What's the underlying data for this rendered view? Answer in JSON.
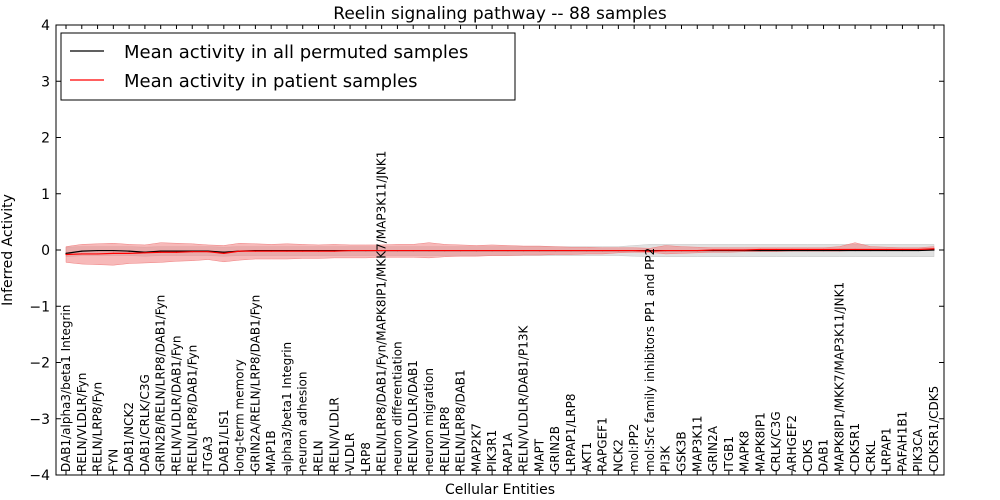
{
  "chart_data": {
    "type": "line",
    "title": "Reelin signaling pathway -- 88 samples",
    "xlabel": "Cellular Entities",
    "ylabel": "Inferred Activity",
    "ylim": [
      -4,
      4
    ],
    "yticks": [
      4,
      3,
      2,
      1,
      0,
      -1,
      -2,
      -3,
      -4
    ],
    "ytick_labels": [
      "4",
      "3",
      "2",
      "1",
      "0",
      "−1",
      "−2",
      "−3",
      "−4"
    ],
    "grid": false,
    "legend_placement": "top-left",
    "colors": {
      "permuted": "#000000",
      "patient": "#ff0000",
      "patient_band": "#f08080",
      "permuted_band": "#c8c8c8"
    },
    "categories": [
      "DAB1/alpha3/beta1 Integrin",
      "RELN/VLDLR/Fyn",
      "RELN/LRP8/Fyn",
      "FYN",
      "DAB1/NCK2",
      "DAB1/CRLK/C3G",
      "GRIN2B/RELN/LRP8/DAB1/Fyn",
      "RELN/VLDLR/DAB1/Fyn",
      "RELN/LRP8/DAB1/Fyn",
      "ITGA3",
      "DAB1/LIS1",
      "long-term memory",
      "GRIN2A/RELN/LRP8/DAB1/Fyn",
      "MAP1B",
      "alpha3/beta1 Integrin",
      "neuron adhesion",
      "RELN",
      "RELN/VLDLR",
      "VLDLR",
      "LRP8",
      "RELN/LRP8/DAB1/Fyn/MAPK8IP1/MKK7/MAP3K11/JNK1",
      "neuron differentiation",
      "RELN/VLDLR/DAB1",
      "neuron migration",
      "RELN/LRP8",
      "RELN/LRP8/DAB1",
      "MAP2K7",
      "PIK3R1",
      "RAP1A",
      "RELN/VLDLR/DAB1/P13K",
      "MAPT",
      "GRIN2B",
      "LRPAP1/LRP8",
      "AKT1",
      "RAPGEF1",
      "NCK2",
      "mol:PP2",
      "mol:Src family inhibitors PP1 and PP2",
      "PI3K",
      "GSK3B",
      "MAP3K11",
      "GRIN2A",
      "ITGB1",
      "MAPK8",
      "MAPK8IP1",
      "CRLK/C3G",
      "ARHGEF2",
      "CDK5",
      "DAB1",
      "MAPK8IP1/MKK7/MAP3K11/JNK1",
      "CDK5R1",
      "CRKL",
      "LRPAP1",
      "PAFAH1B1",
      "PIK3CA",
      "CDK5R1/CDK5"
    ],
    "series": [
      {
        "name": "Mean activity in all permuted samples",
        "values": [
          -0.06,
          -0.02,
          -0.01,
          -0.01,
          -0.02,
          -0.04,
          -0.02,
          -0.02,
          -0.02,
          -0.02,
          -0.04,
          -0.02,
          -0.01,
          -0.01,
          -0.01,
          -0.01,
          -0.01,
          -0.01,
          -0.01,
          -0.01,
          -0.01,
          -0.01,
          -0.01,
          -0.01,
          -0.01,
          -0.01,
          -0.01,
          -0.01,
          -0.01,
          -0.01,
          -0.01,
          -0.01,
          -0.01,
          -0.01,
          -0.01,
          -0.01,
          -0.01,
          -0.01,
          -0.01,
          -0.01,
          -0.01,
          -0.01,
          -0.01,
          -0.01,
          -0.01,
          -0.01,
          -0.01,
          -0.01,
          -0.01,
          -0.01,
          -0.01,
          -0.01,
          -0.01,
          -0.01,
          -0.01,
          0.0
        ],
        "lower": [
          -0.12,
          -0.1,
          -0.1,
          -0.1,
          -0.1,
          -0.11,
          -0.1,
          -0.1,
          -0.1,
          -0.1,
          -0.11,
          -0.1,
          -0.1,
          -0.1,
          -0.1,
          -0.1,
          -0.1,
          -0.1,
          -0.1,
          -0.1,
          -0.1,
          -0.1,
          -0.1,
          -0.1,
          -0.1,
          -0.1,
          -0.1,
          -0.1,
          -0.1,
          -0.1,
          -0.1,
          -0.1,
          -0.1,
          -0.1,
          -0.1,
          -0.1,
          -0.11,
          -0.12,
          -0.12,
          -0.12,
          -0.12,
          -0.12,
          -0.12,
          -0.12,
          -0.12,
          -0.12,
          -0.12,
          -0.12,
          -0.12,
          -0.12,
          -0.12,
          -0.12,
          -0.12,
          -0.12,
          -0.12,
          -0.12
        ],
        "upper": [
          0.05,
          0.06,
          0.06,
          0.06,
          0.06,
          0.05,
          0.06,
          0.06,
          0.06,
          0.06,
          0.05,
          0.06,
          0.06,
          0.06,
          0.06,
          0.06,
          0.06,
          0.06,
          0.06,
          0.06,
          0.06,
          0.06,
          0.06,
          0.06,
          0.06,
          0.06,
          0.06,
          0.06,
          0.06,
          0.06,
          0.06,
          0.06,
          0.06,
          0.06,
          0.06,
          0.06,
          0.08,
          0.1,
          0.1,
          0.1,
          0.1,
          0.1,
          0.1,
          0.1,
          0.1,
          0.1,
          0.1,
          0.1,
          0.1,
          0.1,
          0.1,
          0.1,
          0.1,
          0.1,
          0.1,
          0.1
        ]
      },
      {
        "name": "Mean activity in patient samples",
        "values": [
          -0.08,
          -0.07,
          -0.07,
          -0.06,
          -0.06,
          -0.05,
          -0.04,
          -0.04,
          -0.03,
          -0.03,
          -0.06,
          -0.02,
          -0.02,
          -0.02,
          -0.02,
          -0.02,
          -0.02,
          -0.02,
          -0.01,
          -0.01,
          -0.01,
          -0.01,
          -0.01,
          -0.01,
          -0.01,
          -0.01,
          -0.01,
          -0.01,
          -0.01,
          -0.01,
          -0.01,
          -0.01,
          -0.01,
          -0.01,
          -0.01,
          -0.01,
          -0.01,
          -0.02,
          -0.01,
          -0.01,
          -0.01,
          0.0,
          0.0,
          0.0,
          0.01,
          0.01,
          0.01,
          0.01,
          0.01,
          0.01,
          0.01,
          0.01,
          0.01,
          0.01,
          0.01,
          0.02
        ],
        "lower": [
          -0.22,
          -0.25,
          -0.26,
          -0.27,
          -0.24,
          -0.23,
          -0.22,
          -0.2,
          -0.19,
          -0.17,
          -0.21,
          -0.18,
          -0.16,
          -0.16,
          -0.16,
          -0.15,
          -0.15,
          -0.14,
          -0.14,
          -0.14,
          -0.13,
          -0.13,
          -0.13,
          -0.14,
          -0.12,
          -0.11,
          -0.11,
          -0.1,
          -0.1,
          -0.09,
          -0.09,
          -0.08,
          -0.08,
          -0.07,
          -0.07,
          -0.05,
          -0.04,
          -0.04,
          -0.07,
          -0.06,
          -0.05,
          -0.04,
          -0.04,
          -0.03,
          -0.03,
          -0.03,
          -0.02,
          -0.02,
          -0.02,
          -0.02,
          -0.01,
          -0.01,
          -0.01,
          -0.01,
          -0.01,
          0.0
        ],
        "upper": [
          0.06,
          0.1,
          0.11,
          0.12,
          0.1,
          0.09,
          0.13,
          0.12,
          0.11,
          0.09,
          0.08,
          0.12,
          0.11,
          0.1,
          0.11,
          0.1,
          0.09,
          0.1,
          0.09,
          0.09,
          0.09,
          0.1,
          0.1,
          0.13,
          0.1,
          0.09,
          0.08,
          0.09,
          0.08,
          0.07,
          0.07,
          0.06,
          0.05,
          0.05,
          0.04,
          0.04,
          0.04,
          0.03,
          0.08,
          0.06,
          0.05,
          0.04,
          0.04,
          0.04,
          0.04,
          0.04,
          0.04,
          0.04,
          0.04,
          0.06,
          0.13,
          0.06,
          0.05,
          0.04,
          0.04,
          0.06
        ]
      }
    ]
  }
}
